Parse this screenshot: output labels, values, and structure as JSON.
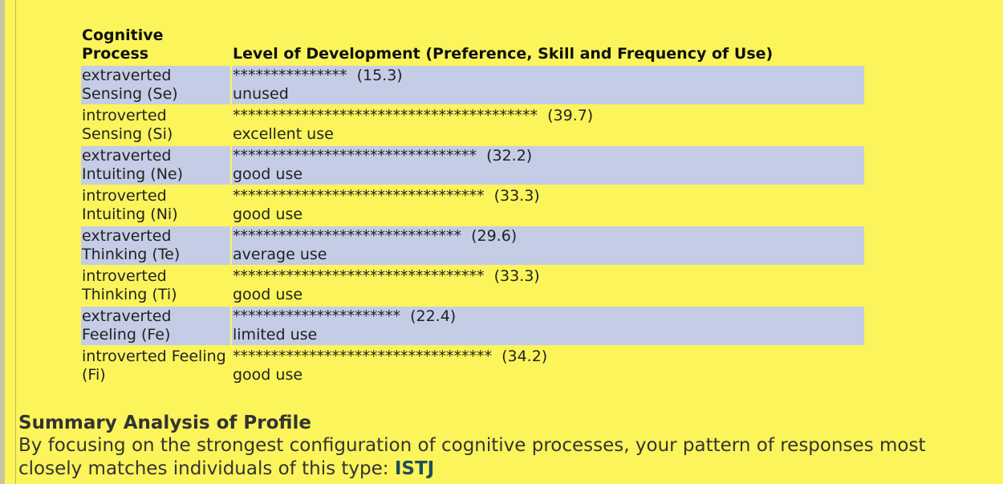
{
  "table": {
    "headers": {
      "process": "Cognitive Process",
      "level": "Level of Development (Preference, Skill and Frequency of Use)"
    },
    "rows": [
      {
        "process": "extraverted Sensing (Se)",
        "stars": "***************",
        "score": "(15.3)",
        "usage": "unused"
      },
      {
        "process": "introverted Sensing (Si)",
        "stars": "****************************************",
        "score": "(39.7)",
        "usage": "excellent use"
      },
      {
        "process": "extraverted Intuiting (Ne)",
        "stars": "********************************",
        "score": "(32.2)",
        "usage": "good use"
      },
      {
        "process": "introverted Intuiting (Ni)",
        "stars": "*********************************",
        "score": "(33.3)",
        "usage": "good use"
      },
      {
        "process": "extraverted Thinking (Te)",
        "stars": "******************************",
        "score": "(29.6)",
        "usage": "average use"
      },
      {
        "process": "introverted Thinking (Ti)",
        "stars": "*********************************",
        "score": "(33.3)",
        "usage": "good use"
      },
      {
        "process": "extraverted Feeling (Fe)",
        "stars": "**********************",
        "score": "(22.4)",
        "usage": "limited use"
      },
      {
        "process": "introverted Feeling (Fi)",
        "stars": "**********************************",
        "score": "(34.2)",
        "usage": "good use"
      }
    ]
  },
  "summary": {
    "heading": "Summary Analysis of Profile",
    "text": "By focusing on the strongest configuration of cognitive processes, your pattern of responses most closely matches individuals of this type: ",
    "type": "ISTJ"
  },
  "colors": {
    "background": "#fbf45a",
    "row_shade": "#c5cce6",
    "type_accent": "#1f4f55"
  }
}
